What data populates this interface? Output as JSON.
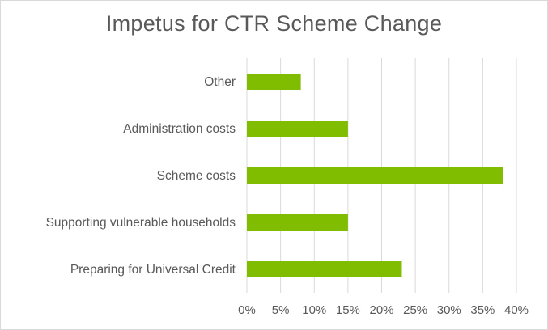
{
  "chart_data": {
    "type": "bar",
    "orientation": "horizontal",
    "title": "Impetus for CTR Scheme Change",
    "categories": [
      "Other",
      "Administration costs",
      "Scheme costs",
      "Supporting vulnerable households",
      "Preparing for Universal Credit"
    ],
    "values": [
      8,
      15,
      38,
      15,
      23
    ],
    "unit": "%",
    "xlim": [
      0,
      40
    ],
    "xticks": [
      "0%",
      "5%",
      "10%",
      "15%",
      "20%",
      "25%",
      "30%",
      "35%",
      "40%"
    ],
    "grid": "vertical",
    "legend": "none",
    "bar_color": "#80bc00"
  }
}
